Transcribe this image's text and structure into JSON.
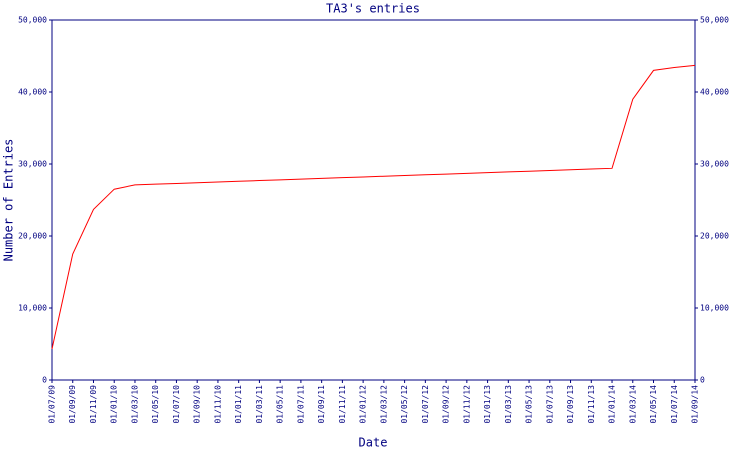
{
  "chart_data": {
    "type": "line",
    "title": "TA3's entries",
    "xlabel": "Date",
    "ylabel": "Number of Entries",
    "categories": [
      "01/07/09",
      "01/09/09",
      "01/11/09",
      "01/01/10",
      "01/03/10",
      "01/05/10",
      "01/07/10",
      "01/09/10",
      "01/11/10",
      "01/01/11",
      "01/03/11",
      "01/05/11",
      "01/07/11",
      "01/09/11",
      "01/11/11",
      "01/01/12",
      "01/03/12",
      "01/05/12",
      "01/07/12",
      "01/09/12",
      "01/11/12",
      "01/01/13",
      "01/03/13",
      "01/05/13",
      "01/07/13",
      "01/09/13",
      "01/11/13",
      "01/01/14",
      "01/03/14",
      "01/05/14",
      "01/07/14",
      "01/09/14"
    ],
    "values": [
      4300,
      17500,
      23700,
      26500,
      27100,
      27200,
      27300,
      27400,
      27500,
      27600,
      27700,
      27800,
      27900,
      28000,
      28100,
      28200,
      28300,
      28400,
      28500,
      28600,
      28700,
      28800,
      28900,
      29000,
      29100,
      29200,
      29300,
      29400,
      39000,
      43000,
      43400,
      43700
    ],
    "color": "#ff0000",
    "ylim": [
      0,
      50000
    ],
    "yticks": [
      0,
      {
        "value": 10000,
        "label": "10,000"
      },
      {
        "value": 20000,
        "label": "20,000"
      },
      {
        "value": 30000,
        "label": "30,000"
      },
      {
        "value": 40000,
        "label": "40,000"
      },
      {
        "value": 50000,
        "label": "50,000"
      }
    ],
    "right_axis": true
  }
}
